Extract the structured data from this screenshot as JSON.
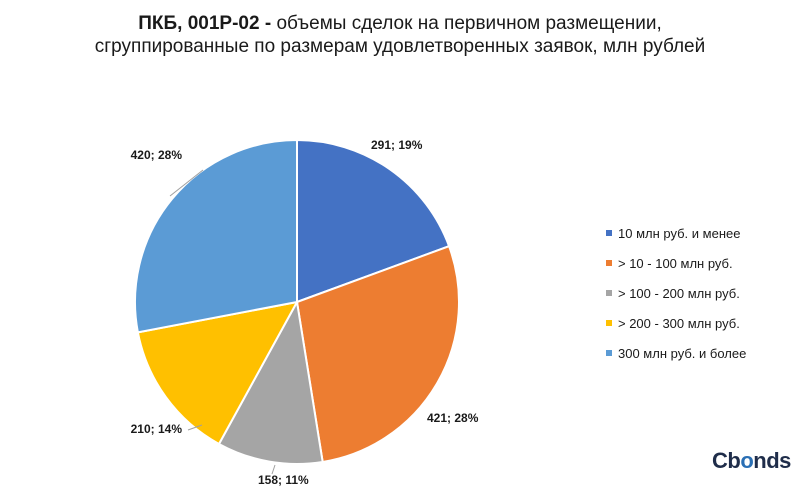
{
  "header": {
    "title_bold": "ПКБ, 001Р-02 -",
    "title_rest": " объемы сделок на первичном размещении,",
    "title_line2": "сгруппированные по размерам удовлетворенных заявок, млн рублей"
  },
  "chart_data": {
    "type": "pie",
    "title": "ПКБ, 001Р-02 - объемы сделок на первичном размещении, сгруппированные по размерам удовлетворенных заявок, млн рублей",
    "categories": [
      "10 млн руб. и менее",
      "> 10 - 100 млн руб.",
      "> 100 - 200 млн руб.",
      "> 200 - 300 млн руб.",
      "300 млн руб. и более"
    ],
    "values": [
      291,
      421,
      158,
      210,
      420
    ],
    "percents": [
      "19%",
      "28%",
      "11%",
      "14%",
      "28%"
    ],
    "labels": [
      "291; 19%",
      "421; 28%",
      "158; 11%",
      "210; 14%",
      "420; 28%"
    ],
    "colors": [
      "#4472c4",
      "#ed7d31",
      "#a5a5a5",
      "#ffc000",
      "#5b9bd5"
    ],
    "legend_position": "right"
  },
  "brand": {
    "logo_c": "C",
    "logo_o": "o",
    "logo_rest": "nds",
    "logo_b": "b"
  }
}
